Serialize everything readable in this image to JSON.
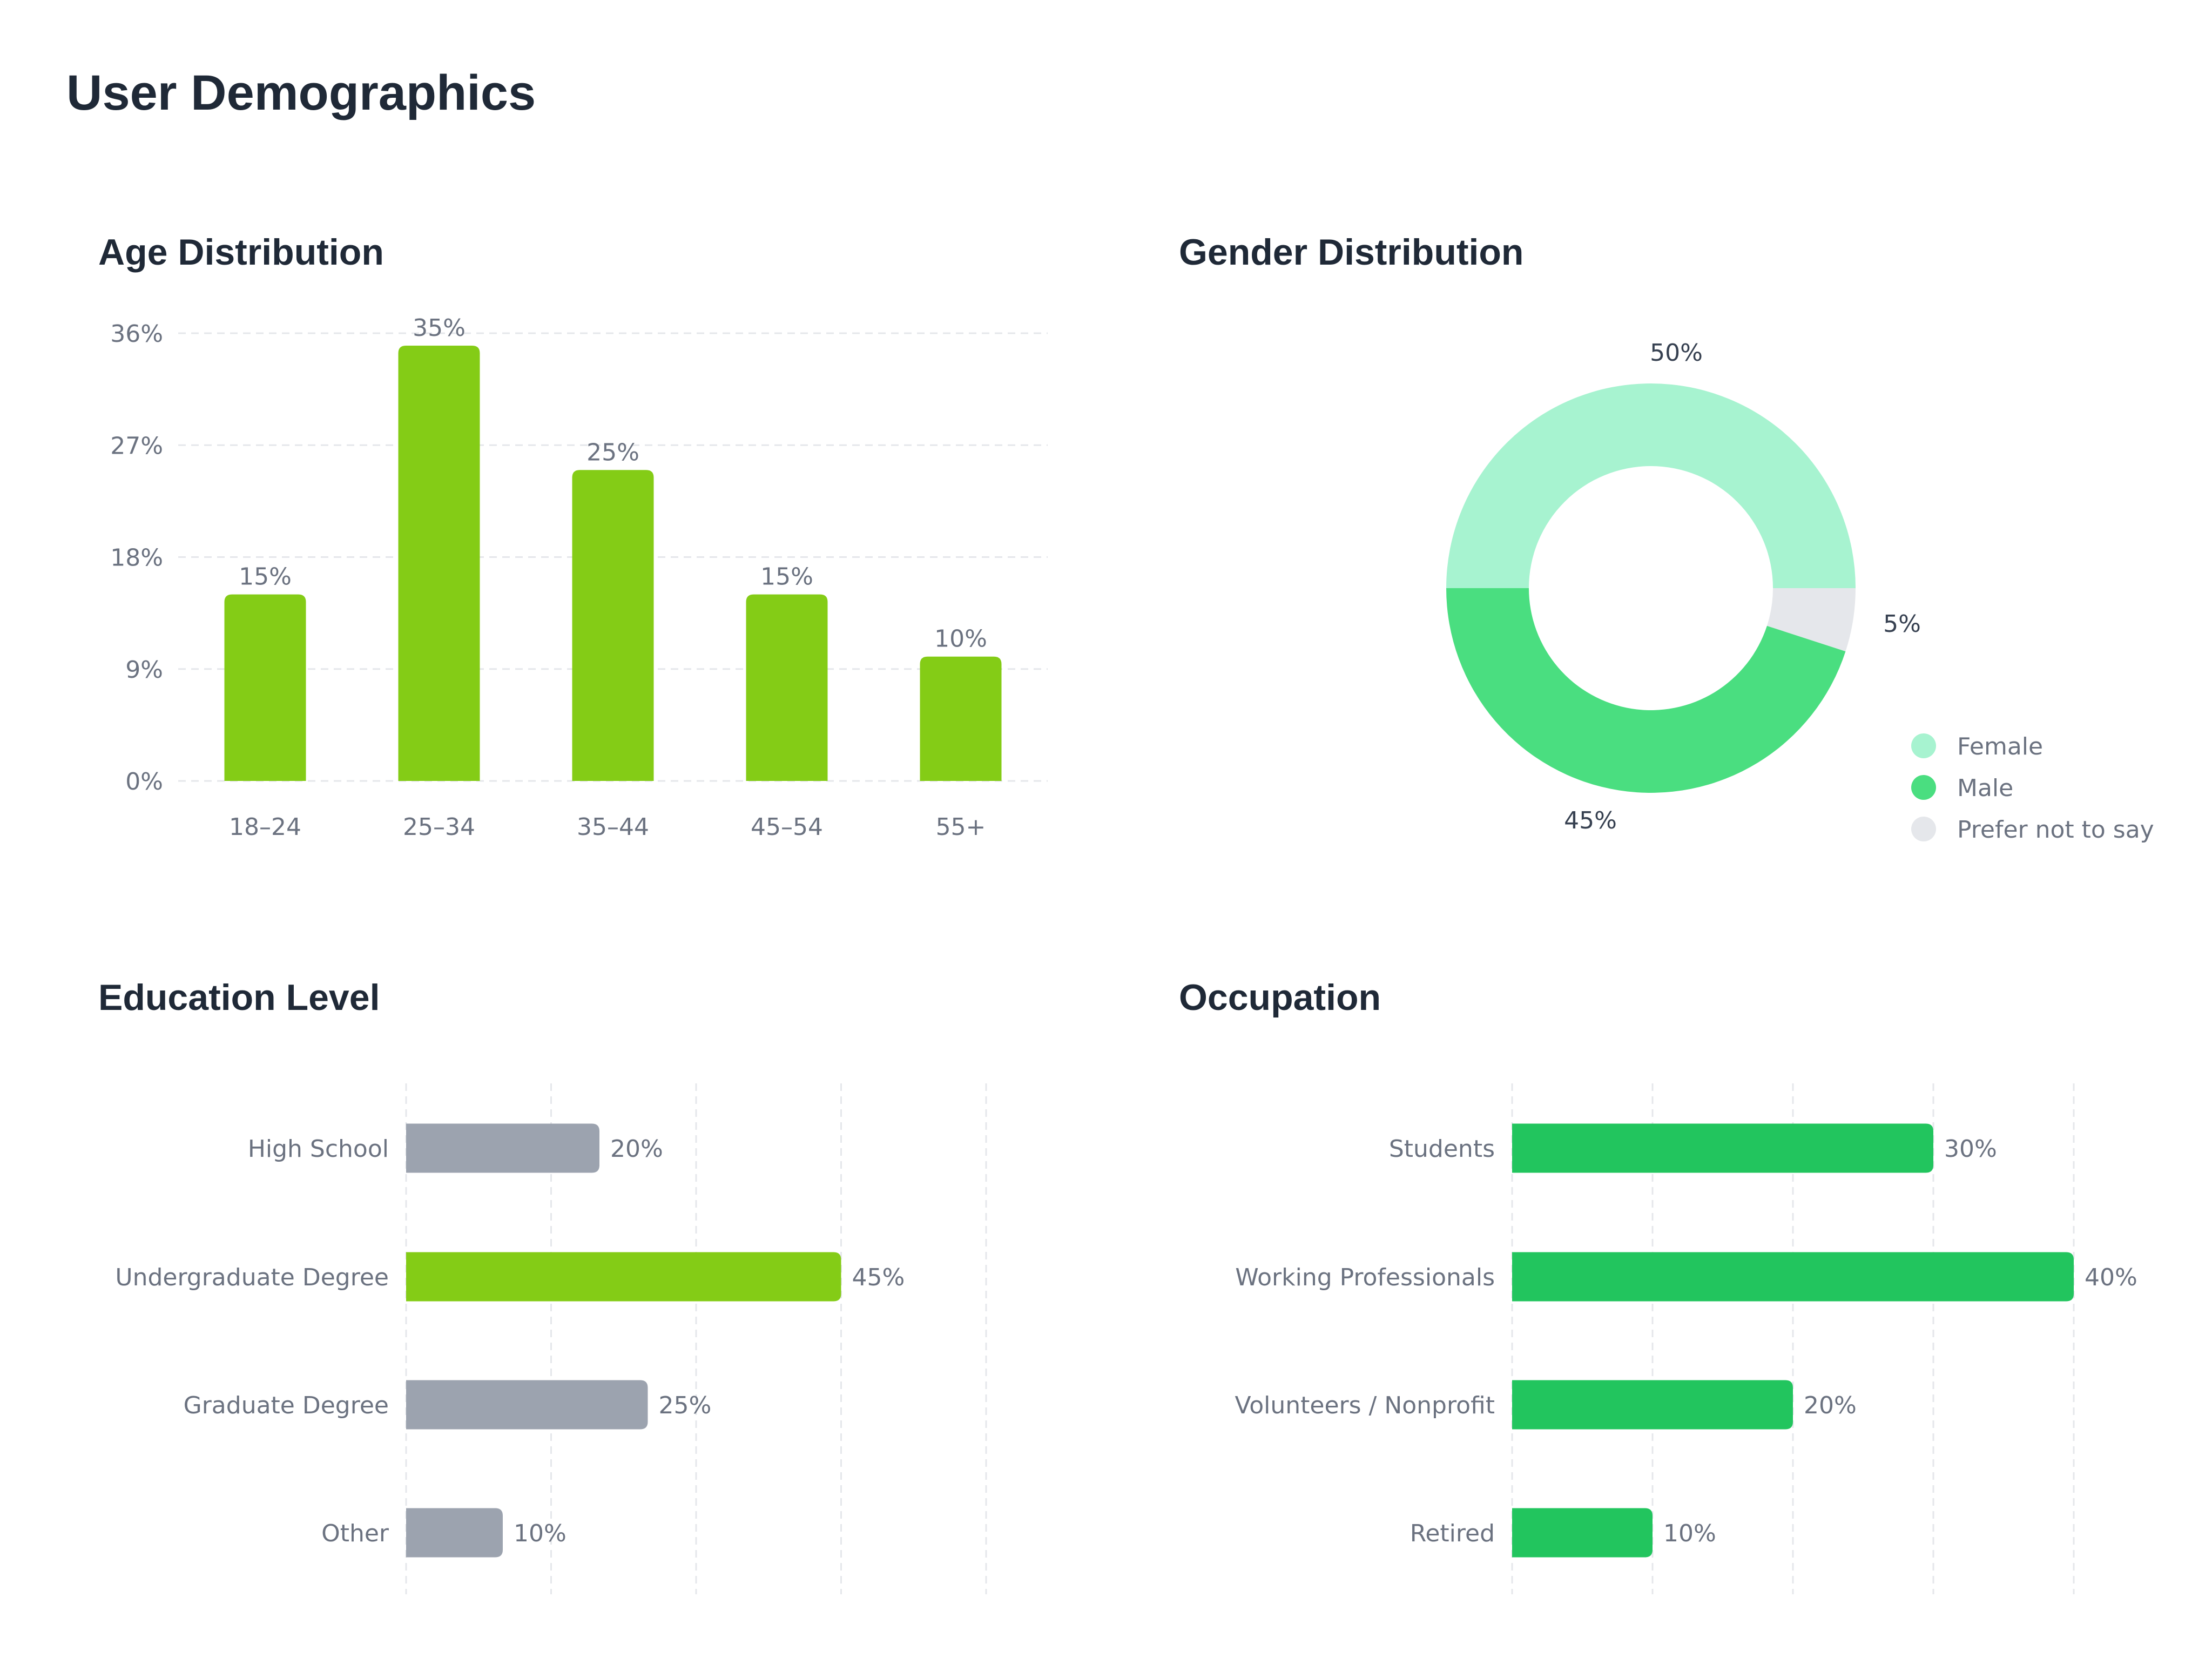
{
  "page": {
    "title": "User Demographics"
  },
  "colors": {
    "green_bar": "#84cc16",
    "gray_bar": "#9ca3af",
    "occupation_bar": "#22c55e",
    "female": "#a7f3d0",
    "male": "#4ade80",
    "prefer_not": "#e5e7eb"
  },
  "chart_data": [
    {
      "id": "age",
      "type": "bar",
      "title": "Age Distribution",
      "categories": [
        "18–24",
        "25–34",
        "35–44",
        "45–54",
        "55+"
      ],
      "values": [
        15,
        35,
        25,
        15,
        10
      ],
      "value_labels": [
        "15%",
        "35%",
        "25%",
        "15%",
        "10%"
      ],
      "yticks": [
        0,
        9,
        18,
        27,
        36
      ],
      "ytick_labels": [
        "0%",
        "9%",
        "18%",
        "27%",
        "36%"
      ],
      "ylim": [
        0,
        36
      ],
      "grid": true,
      "xlabel": "",
      "ylabel": ""
    },
    {
      "id": "gender",
      "type": "pie",
      "title": "Gender Distribution",
      "donut": true,
      "slices": [
        {
          "name": "Female",
          "value": 50,
          "label": "50%"
        },
        {
          "name": "Prefer not to say",
          "value": 5,
          "label": "5%"
        },
        {
          "name": "Male",
          "value": 45,
          "label": "45%"
        }
      ],
      "legend": [
        "Female",
        "Male",
        "Prefer not to say"
      ],
      "legend_position": "bottom-right"
    },
    {
      "id": "education",
      "type": "bar",
      "orientation": "horizontal",
      "title": "Education Level",
      "categories": [
        "High School",
        "Undergraduate Degree",
        "Graduate Degree",
        "Other"
      ],
      "values": [
        20,
        45,
        25,
        10
      ],
      "value_labels": [
        "20%",
        "45%",
        "25%",
        "10%"
      ],
      "highlight_index": 1,
      "xlim": [
        0,
        60
      ],
      "grid": true
    },
    {
      "id": "occupation",
      "type": "bar",
      "orientation": "horizontal",
      "title": "Occupation",
      "categories": [
        "Students",
        "Working Professionals",
        "Volunteers / Nonprofit",
        "Retired"
      ],
      "values": [
        30,
        40,
        20,
        10
      ],
      "value_labels": [
        "30%",
        "40%",
        "20%",
        "10%"
      ],
      "xlim": [
        0,
        40
      ],
      "grid": true
    }
  ]
}
